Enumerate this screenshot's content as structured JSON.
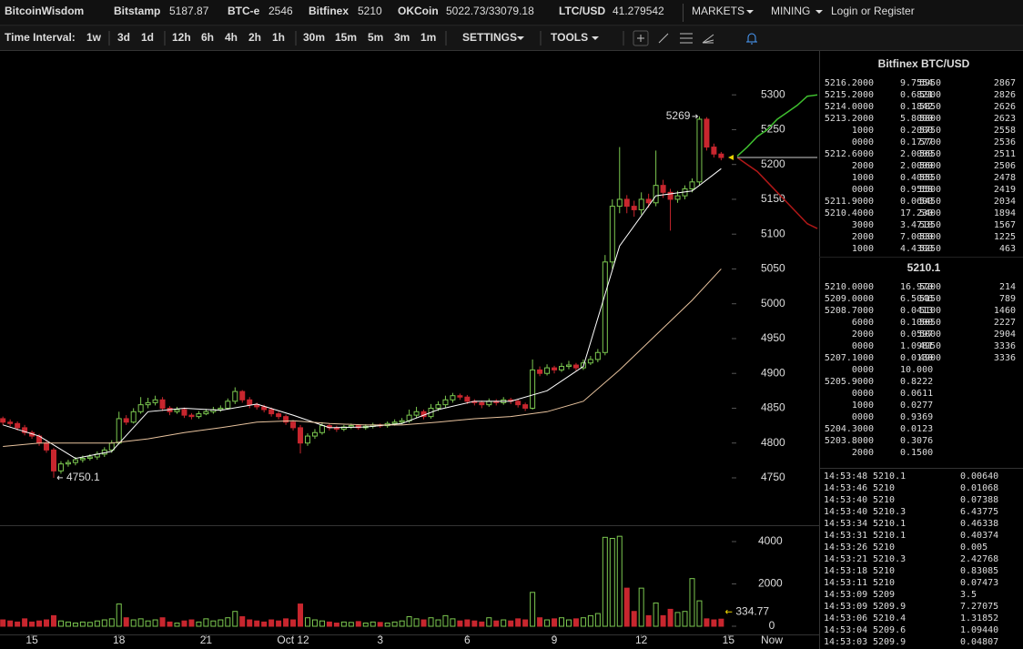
{
  "header": {
    "brand": "BitcoinWisdom",
    "tickers": [
      {
        "name": "Bitstamp",
        "price": "5187.87"
      },
      {
        "name": "BTC-e",
        "price": "2546"
      },
      {
        "name": "Bitfinex",
        "price": "5210",
        "active": true
      },
      {
        "name": "OKCoin",
        "price": "5022.73/33079.18"
      },
      {
        "name": "LTC/USD",
        "price": "41.279542"
      }
    ],
    "menus": [
      "MARKETS",
      "MINING"
    ],
    "login": "Login",
    "or": "or",
    "register": "Register"
  },
  "toolbar": {
    "label": "Time Interval:",
    "interval_groups": [
      [
        {
          "label": "1w"
        },
        {
          "label": "3d"
        },
        {
          "label": "1d"
        }
      ],
      [
        {
          "label": "12h"
        },
        {
          "label": "6h"
        },
        {
          "label": "4h"
        },
        {
          "label": "2h"
        },
        {
          "label": "1h"
        }
      ],
      [
        {
          "label": "30m"
        },
        {
          "label": "15m",
          "active": true
        },
        {
          "label": "5m"
        },
        {
          "label": "3m"
        },
        {
          "label": "1m"
        }
      ]
    ],
    "menus": [
      "SETTINGS",
      "TOOLS"
    ]
  },
  "chart_data": {
    "type": "candlestick",
    "colors": {
      "up": "#7cc850",
      "down": "#c8262e"
    },
    "ohlc": [
      [
        4835,
        4838,
        4826,
        4830
      ],
      [
        4830,
        4834,
        4824,
        4828
      ],
      [
        4828,
        4831,
        4818,
        4822
      ],
      [
        4822,
        4826,
        4811,
        4815
      ],
      [
        4815,
        4818,
        4806,
        4810
      ],
      [
        4810,
        4813,
        4796,
        4800
      ],
      [
        4800,
        4804,
        4786,
        4790
      ],
      [
        4790,
        4793,
        4750.1,
        4760
      ],
      [
        4760,
        4774,
        4756,
        4770
      ],
      [
        4770,
        4776,
        4766,
        4772
      ],
      [
        4772,
        4780,
        4768,
        4776
      ],
      [
        4776,
        4782,
        4772,
        4778
      ],
      [
        4778,
        4784,
        4775,
        4780
      ],
      [
        4780,
        4788,
        4776,
        4784
      ],
      [
        4784,
        4794,
        4780,
        4790
      ],
      [
        4790,
        4804,
        4786,
        4800
      ],
      [
        4800,
        4845,
        4798,
        4835
      ],
      [
        4835,
        4840,
        4826,
        4830
      ],
      [
        4830,
        4850,
        4828,
        4845
      ],
      [
        4845,
        4866,
        4842,
        4855
      ],
      [
        4855,
        4865,
        4850,
        4858
      ],
      [
        4858,
        4868,
        4854,
        4862
      ],
      [
        4862,
        4866,
        4846,
        4850
      ],
      [
        4850,
        4853,
        4840,
        4845
      ],
      [
        4845,
        4852,
        4842,
        4848
      ],
      [
        4848,
        4851,
        4836,
        4840
      ],
      [
        4840,
        4843,
        4834,
        4838
      ],
      [
        4838,
        4846,
        4835,
        4842
      ],
      [
        4842,
        4849,
        4840,
        4845
      ],
      [
        4845,
        4852,
        4842,
        4848
      ],
      [
        4848,
        4854,
        4845,
        4850
      ],
      [
        4850,
        4864,
        4848,
        4860
      ],
      [
        4860,
        4880,
        4856,
        4874
      ],
      [
        4874,
        4876,
        4858,
        4862
      ],
      [
        4862,
        4866,
        4850,
        4855
      ],
      [
        4855,
        4858,
        4848,
        4852
      ],
      [
        4852,
        4855,
        4844,
        4848
      ],
      [
        4848,
        4851,
        4838,
        4842
      ],
      [
        4842,
        4845,
        4834,
        4838
      ],
      [
        4838,
        4841,
        4826,
        4830
      ],
      [
        4830,
        4833,
        4818,
        4822
      ],
      [
        4822,
        4826,
        4785,
        4800
      ],
      [
        4800,
        4814,
        4796,
        4810
      ],
      [
        4810,
        4820,
        4806,
        4815
      ],
      [
        4815,
        4830,
        4812,
        4825
      ],
      [
        4825,
        4828,
        4818,
        4822
      ],
      [
        4822,
        4825,
        4816,
        4820
      ],
      [
        4820,
        4826,
        4817,
        4823
      ],
      [
        4823,
        4828,
        4820,
        4825
      ],
      [
        4825,
        4827,
        4819,
        4822
      ],
      [
        4822,
        4827,
        4819,
        4824
      ],
      [
        4824,
        4829,
        4821,
        4826
      ],
      [
        4826,
        4828,
        4822,
        4825
      ],
      [
        4825,
        4831,
        4822,
        4828
      ],
      [
        4828,
        4834,
        4825,
        4830
      ],
      [
        4830,
        4836,
        4827,
        4832
      ],
      [
        4832,
        4848,
        4829,
        4840
      ],
      [
        4840,
        4852,
        4836,
        4845
      ],
      [
        4845,
        4848,
        4834,
        4838
      ],
      [
        4838,
        4856,
        4835,
        4850
      ],
      [
        4850,
        4860,
        4846,
        4855
      ],
      [
        4855,
        4868,
        4851,
        4862
      ],
      [
        4862,
        4872,
        4858,
        4868
      ],
      [
        4868,
        4871,
        4862,
        4866
      ],
      [
        4866,
        4869,
        4856,
        4860
      ],
      [
        4860,
        4863,
        4854,
        4858
      ],
      [
        4858,
        4861,
        4850,
        4855
      ],
      [
        4855,
        4864,
        4852,
        4860
      ],
      [
        4860,
        4863,
        4854,
        4858
      ],
      [
        4858,
        4866,
        4855,
        4862
      ],
      [
        4862,
        4865,
        4856,
        4860
      ],
      [
        4860,
        4863,
        4851,
        4855
      ],
      [
        4855,
        4858,
        4846,
        4850
      ],
      [
        4850,
        4920,
        4848,
        4905
      ],
      [
        4905,
        4910,
        4896,
        4900
      ],
      [
        4900,
        4913,
        4897,
        4908
      ],
      [
        4908,
        4911,
        4900,
        4905
      ],
      [
        4905,
        4915,
        4902,
        4910
      ],
      [
        4910,
        4918,
        4906,
        4912
      ],
      [
        4912,
        4915,
        4904,
        4908
      ],
      [
        4908,
        4920,
        4905,
        4915
      ],
      [
        4915,
        4925,
        4912,
        4920
      ],
      [
        4920,
        4935,
        4916,
        4930
      ],
      [
        4930,
        5070,
        4926,
        5060
      ],
      [
        5060,
        5150,
        5050,
        5140
      ],
      [
        5140,
        5225,
        5130,
        5150
      ],
      [
        5150,
        5156,
        5130,
        5140
      ],
      [
        5140,
        5148,
        5125,
        5135
      ],
      [
        5135,
        5160,
        5128,
        5150
      ],
      [
        5150,
        5158,
        5138,
        5145
      ],
      [
        5145,
        5220,
        5140,
        5170
      ],
      [
        5170,
        5178,
        5152,
        5160
      ],
      [
        5160,
        5165,
        5105,
        5150
      ],
      [
        5150,
        5162,
        5145,
        5155
      ],
      [
        5155,
        5170,
        5150,
        5165
      ],
      [
        5165,
        5180,
        5160,
        5175
      ],
      [
        5175,
        5269,
        5170,
        5265
      ],
      [
        5265,
        5268,
        5220,
        5225
      ],
      [
        5225,
        5230,
        5210,
        5215
      ],
      [
        5215,
        5218,
        5206,
        5210
      ]
    ],
    "volume": [
      300,
      250,
      200,
      350,
      200,
      250,
      300,
      500,
      250,
      200,
      150,
      200,
      180,
      250,
      300,
      350,
      1050,
      400,
      300,
      350,
      250,
      300,
      400,
      200,
      150,
      250,
      300,
      200,
      350,
      250,
      300,
      400,
      700,
      450,
      300,
      250,
      200,
      300,
      250,
      350,
      300,
      1050,
      400,
      300,
      250,
      200,
      150,
      200,
      180,
      220,
      150,
      200,
      180,
      150,
      200,
      250,
      450,
      350,
      300,
      400,
      300,
      500,
      350,
      250,
      300,
      250,
      200,
      400,
      250,
      300,
      250,
      350,
      300,
      1600,
      400,
      300,
      350,
      400,
      300,
      350,
      400,
      500,
      600,
      4200,
      4150,
      4250,
      1800,
      700,
      1800,
      500,
      1100,
      500,
      800,
      650,
      700,
      2250,
      1200,
      350,
      300,
      334.77
    ],
    "ylim": [
      4682,
      5363
    ],
    "yticks": [
      4750,
      4800,
      4850,
      4900,
      4950,
      5000,
      5050,
      5100,
      5150,
      5200,
      5250,
      5300
    ],
    "volume_ylim": [
      0,
      4730
    ],
    "volume_yticks": [
      0,
      2000,
      4000
    ],
    "xlim": [
      -0.4,
      112
    ],
    "xticks": [
      {
        "value": 4,
        "label": "15"
      },
      {
        "value": 16,
        "label": "18"
      },
      {
        "value": 28,
        "label": "21"
      },
      {
        "value": 40,
        "label": "Oct 12"
      },
      {
        "value": 52,
        "label": "3"
      },
      {
        "value": 64,
        "label": "6"
      },
      {
        "value": 76,
        "label": "9"
      },
      {
        "value": 88,
        "label": "12"
      },
      {
        "value": 100,
        "label": "15"
      }
    ],
    "now_label": "Now",
    "moving_averages": [
      {
        "color": "#ffffff",
        "x": [
          0,
          5,
          10,
          15,
          20,
          25,
          30,
          35,
          40,
          45,
          50,
          55,
          60,
          65,
          70,
          75,
          80,
          85,
          90,
          95,
          99
        ],
        "values": [
          4826,
          4810,
          4778,
          4788,
          4845,
          4850,
          4847,
          4856,
          4840,
          4822,
          4823,
          4828,
          4848,
          4860,
          4860,
          4875,
          4910,
          5083,
          5155,
          5162,
          5194
        ]
      },
      {
        "color": "#e8c39e",
        "x": [
          0,
          5,
          10,
          15,
          20,
          25,
          30,
          35,
          40,
          45,
          50,
          55,
          60,
          65,
          70,
          75,
          80,
          85,
          90,
          95,
          99
        ],
        "values": [
          4795,
          4800,
          4800,
          4800,
          4806,
          4815,
          4822,
          4830,
          4832,
          4828,
          4826,
          4826,
          4830,
          4835,
          4838,
          4845,
          4860,
          4905,
          4955,
          5005,
          5050
        ]
      }
    ],
    "depth": {
      "asks": [
        5212,
        5225,
        5240,
        5250,
        5265,
        5275,
        5285,
        5298,
        5300
      ],
      "bids": [
        5210,
        5200,
        5190,
        5175,
        5160,
        5145,
        5130,
        5115,
        5108
      ],
      "ask_color": "#3fbf2f",
      "bid_color": "#b01818"
    },
    "last_price": 5210.1
  },
  "orderbook": {
    "title": "Bitfinex BTC/USD",
    "asks": [
      [
        "5216.2000",
        "9.7554",
        "5950",
        "2867"
      ],
      [
        "5215.2000",
        "0.6821",
        "5900",
        "2826"
      ],
      [
        "5214.0000",
        "0.1842",
        "5850",
        "2626"
      ],
      [
        "5213.2000",
        "5.8000",
        "5800",
        "2623"
      ],
      [
        "1000",
        "0.2000",
        "5750",
        "2558"
      ],
      [
        "0000",
        "0.1777",
        "5700",
        "2536"
      ],
      [
        "5212.6000",
        "2.0000",
        "5650",
        "2511"
      ],
      [
        "2000",
        "2.0000",
        "5600",
        "2506"
      ],
      [
        "1000",
        "0.4000",
        "5550",
        "2478"
      ],
      [
        "0000",
        "0.9558",
        "5500",
        "2419"
      ],
      [
        "5211.9000",
        "0.0600",
        "5450",
        "2034"
      ],
      [
        "5210.4000",
        "17.230",
        "5400",
        "1894"
      ],
      [
        "3000",
        "3.4718",
        "5350",
        "1567"
      ],
      [
        "2000",
        "7.0000",
        "5300",
        "1225"
      ],
      [
        "1000",
        "4.4300",
        "5250",
        "463"
      ]
    ],
    "bids": [
      [
        "5210.0000",
        "16.970",
        "5200",
        "214"
      ],
      [
        "5209.0000",
        "6.5046",
        "5150",
        "789"
      ],
      [
        "5208.7000",
        "0.0413",
        "5100",
        "1460"
      ],
      [
        "6000",
        "0.1000",
        "5050",
        "2227"
      ],
      [
        "2000",
        "0.0597",
        "5000",
        "2904"
      ],
      [
        "0000",
        "1.0981",
        "4950",
        "3336"
      ],
      [
        "5207.1000",
        "0.0130",
        "4900",
        "3336"
      ],
      [
        "0000",
        "10.000"
      ],
      [
        "5205.9000",
        "0.8222"
      ],
      [
        "0000",
        "0.0611"
      ],
      [
        "1000",
        "0.0277"
      ],
      [
        "0000",
        "0.9369"
      ],
      [
        "5204.3000",
        "0.0123"
      ],
      [
        "5203.8000",
        "0.3076"
      ],
      [
        "2000",
        "0.1500"
      ]
    ]
  },
  "trades": [
    [
      "14:53:48",
      "5210.1",
      "0.00640",
      "buy"
    ],
    [
      "14:53:46",
      "5210",
      "0.01068",
      "sell"
    ],
    [
      "14:53:40",
      "5210",
      "0.07388",
      "sell"
    ],
    [
      "14:53:40",
      "5210.3",
      "6.43775",
      "buy"
    ],
    [
      "14:53:34",
      "5210.1",
      "0.46338",
      "buy"
    ],
    [
      "14:53:31",
      "5210.1",
      "0.40374",
      "buy"
    ],
    [
      "14:53:26",
      "5210",
      "0.005",
      "buy"
    ],
    [
      "14:53:21",
      "5210.3",
      "2.42768",
      "buy"
    ],
    [
      "14:53:18",
      "5210",
      "0.83085",
      "buy"
    ],
    [
      "14:53:11",
      "5210",
      "0.07473",
      "buy"
    ],
    [
      "14:53:09",
      "5209",
      "3.5",
      "sell"
    ],
    [
      "14:53:09",
      "5209.9",
      "7.27075",
      "buy"
    ],
    [
      "14:53:06",
      "5210.4",
      "1.31852",
      "buy"
    ],
    [
      "14:53:04",
      "5209.6",
      "1.09440",
      "sell"
    ],
    [
      "14:53:03",
      "5209.9",
      "0.04807",
      "buy"
    ]
  ]
}
